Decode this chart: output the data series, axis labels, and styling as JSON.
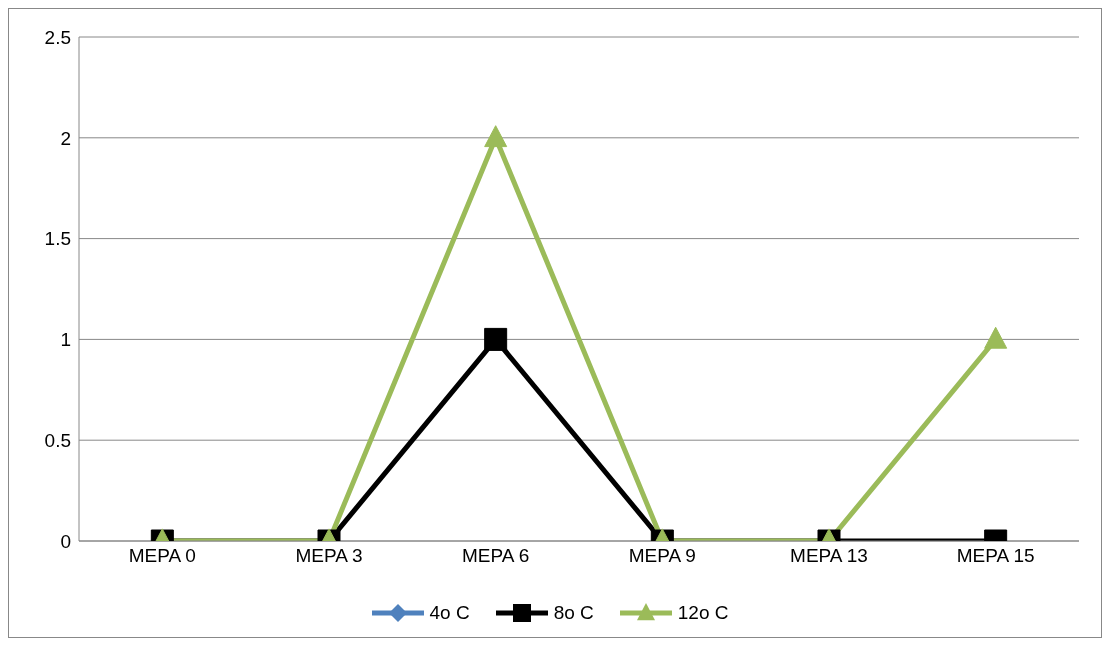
{
  "chart_data": {
    "type": "line",
    "categories": [
      "MEPA 0",
      "MEPA 3",
      "MEPA 6",
      "MEPA 9",
      "MEPA 13",
      "MEPA 15"
    ],
    "series": [
      {
        "name": "4o C",
        "color": "#4f81bd",
        "marker": "diamond",
        "values": [
          null,
          null,
          null,
          null,
          null,
          null
        ]
      },
      {
        "name": "8o C",
        "color": "#000000",
        "marker": "square",
        "values": [
          0,
          0,
          1,
          0,
          0,
          0
        ]
      },
      {
        "name": "12o C",
        "color": "#9bbb59",
        "marker": "triangle",
        "values": [
          0,
          0,
          2,
          0,
          0,
          1
        ]
      }
    ],
    "ylim": [
      0,
      2.5
    ],
    "yticks": [
      0,
      0.5,
      1,
      1.5,
      2,
      2.5
    ],
    "grid": "y",
    "legend": "bottom",
    "line_style": "solid"
  }
}
